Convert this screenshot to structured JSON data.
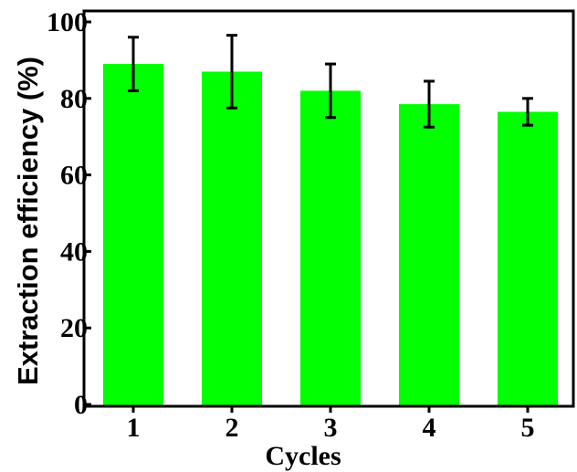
{
  "chart_data": {
    "type": "bar",
    "title": "",
    "xlabel": "Cycles",
    "ylabel": "Extraction efficiency (%)",
    "categories": [
      "1",
      "2",
      "3",
      "4",
      "5"
    ],
    "values": [
      89,
      87,
      82,
      78.5,
      76.5
    ],
    "errors": [
      7,
      9.5,
      7,
      6,
      3.5
    ],
    "ylim": [
      0,
      105
    ],
    "yticks": [
      0,
      20,
      40,
      60,
      80,
      100
    ],
    "grid": false,
    "legend": "none",
    "bar_color": "#00ff00",
    "error_color": "#000000"
  }
}
